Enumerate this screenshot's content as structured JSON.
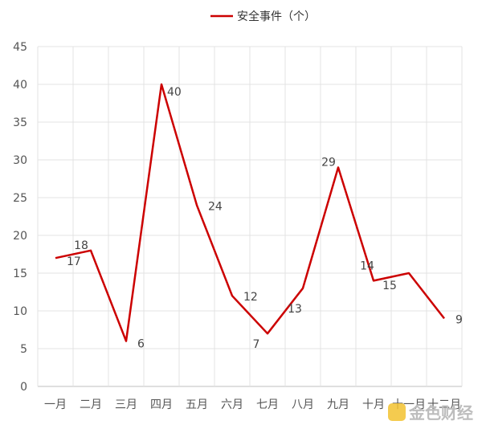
{
  "chart_data": {
    "type": "line",
    "categories": [
      "一月",
      "二月",
      "三月",
      "四月",
      "五月",
      "六月",
      "七月",
      "八月",
      "九月",
      "十月",
      "十一月",
      "十二月"
    ],
    "series": [
      {
        "name": "安全事件（个）",
        "values": [
          17,
          18,
          6,
          40,
          24,
          12,
          7,
          13,
          29,
          14,
          15,
          9
        ]
      }
    ],
    "ylim": [
      0,
      45
    ],
    "yticks": [
      0,
      5,
      10,
      15,
      20,
      25,
      30,
      35,
      40,
      45
    ],
    "grid": true,
    "legend": "top-center",
    "data_labels": true,
    "colors": {
      "series": "#cc0000",
      "grid": "#e3e3e3",
      "axis": "#bfbfbf"
    }
  },
  "watermark": {
    "text": "金色财经",
    "icon": "gold-coin-logo-icon"
  }
}
